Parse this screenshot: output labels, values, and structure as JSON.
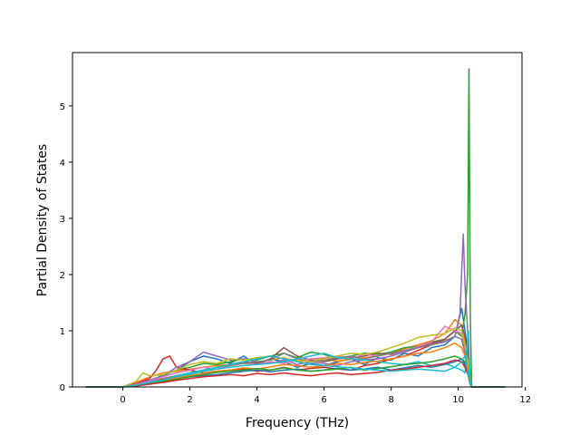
{
  "chart_data": {
    "type": "line",
    "title": "",
    "xlabel": "Frequency (THz)",
    "ylabel": "Partial Density of States",
    "xlim": [
      -1.5,
      11.9
    ],
    "ylim": [
      0,
      5.95
    ],
    "xticks": [
      0,
      2,
      4,
      6,
      8,
      10,
      12
    ],
    "xtick_labels": [
      "0",
      "2",
      "4",
      "6",
      "8",
      "10",
      "12"
    ],
    "yticks": [
      0,
      1,
      2,
      3,
      4,
      5
    ],
    "ytick_labels": [
      "0",
      "1",
      "2",
      "3",
      "4",
      "5"
    ],
    "grid": false,
    "legend": false,
    "palette": [
      "#1f77b4",
      "#ff7f0e",
      "#2ca02c",
      "#d62728",
      "#9467bd",
      "#8c564b",
      "#e377c2",
      "#7f7f7f",
      "#bcbd22",
      "#17becf"
    ],
    "series": [
      {
        "color": "#1f77b4",
        "x": [
          -1.1,
          0.0,
          0.4,
          0.8,
          1.2,
          1.6,
          2.0,
          2.4,
          2.8,
          3.2,
          3.6,
          4.0,
          4.4,
          4.8,
          5.2,
          5.6,
          6.0,
          6.4,
          6.8,
          7.2,
          7.6,
          8.0,
          8.4,
          8.8,
          9.2,
          9.6,
          9.9,
          10.1,
          10.2,
          10.3,
          10.35,
          10.4,
          11.4
        ],
        "y": [
          0,
          0,
          0.05,
          0.12,
          0.2,
          0.3,
          0.45,
          0.55,
          0.5,
          0.42,
          0.55,
          0.4,
          0.5,
          0.45,
          0.35,
          0.42,
          0.38,
          0.45,
          0.5,
          0.4,
          0.52,
          0.48,
          0.6,
          0.55,
          0.7,
          0.75,
          0.9,
          1.4,
          1.0,
          0.6,
          0.2,
          0,
          0
        ]
      },
      {
        "color": "#ff7f0e",
        "x": [
          -1.1,
          0.0,
          0.4,
          0.8,
          1.2,
          1.6,
          2.0,
          2.4,
          2.8,
          3.2,
          3.6,
          4.0,
          4.4,
          4.8,
          5.2,
          5.6,
          6.0,
          6.4,
          6.8,
          7.2,
          7.6,
          8.0,
          8.4,
          8.8,
          9.2,
          9.6,
          9.9,
          10.1,
          10.2,
          10.3,
          10.35,
          10.4,
          11.4
        ],
        "y": [
          0,
          0,
          0.08,
          0.18,
          0.25,
          0.28,
          0.32,
          0.35,
          0.38,
          0.4,
          0.42,
          0.44,
          0.48,
          0.52,
          0.45,
          0.47,
          0.5,
          0.46,
          0.49,
          0.52,
          0.55,
          0.6,
          0.68,
          0.75,
          0.82,
          0.95,
          1.2,
          1.1,
          0.8,
          0.5,
          0.15,
          0,
          0
        ]
      },
      {
        "color": "#2ca02c",
        "x": [
          -1.1,
          0.0,
          0.4,
          0.8,
          1.2,
          1.6,
          2.0,
          2.4,
          2.8,
          3.2,
          3.6,
          4.0,
          4.4,
          4.8,
          5.2,
          5.6,
          6.0,
          6.4,
          6.8,
          7.2,
          7.6,
          8.0,
          8.4,
          8.8,
          9.2,
          9.6,
          9.9,
          10.1,
          10.2,
          10.28,
          10.32,
          10.36,
          10.4,
          11.4
        ],
        "y": [
          0,
          0,
          0.04,
          0.1,
          0.22,
          0.3,
          0.35,
          0.42,
          0.4,
          0.45,
          0.5,
          0.48,
          0.55,
          0.6,
          0.52,
          0.62,
          0.58,
          0.5,
          0.55,
          0.6,
          0.58,
          0.62,
          0.7,
          0.72,
          0.8,
          0.85,
          1.0,
          0.9,
          1.3,
          2.0,
          5.66,
          1.2,
          0,
          0
        ]
      },
      {
        "color": "#d62728",
        "x": [
          -1.1,
          0.0,
          0.4,
          0.8,
          1.0,
          1.2,
          1.4,
          1.6,
          2.0,
          2.4,
          2.8,
          3.2,
          3.6,
          4.0,
          4.4,
          4.8,
          5.2,
          5.6,
          6.0,
          6.4,
          6.8,
          7.2,
          7.6,
          8.0,
          8.4,
          8.8,
          9.2,
          9.6,
          9.9,
          10.1,
          10.2,
          10.3,
          10.35,
          10.4,
          11.4
        ],
        "y": [
          0,
          0,
          0.06,
          0.15,
          0.3,
          0.5,
          0.55,
          0.35,
          0.3,
          0.25,
          0.28,
          0.3,
          0.32,
          0.28,
          0.3,
          0.35,
          0.3,
          0.33,
          0.35,
          0.32,
          0.3,
          0.38,
          0.42,
          0.5,
          0.55,
          0.65,
          0.75,
          0.85,
          1.0,
          0.95,
          0.7,
          0.3,
          0.1,
          0,
          0
        ]
      },
      {
        "color": "#9467bd",
        "x": [
          -1.1,
          0.0,
          0.4,
          0.8,
          1.2,
          1.6,
          2.0,
          2.4,
          2.8,
          3.2,
          3.6,
          4.0,
          4.4,
          4.8,
          5.2,
          5.6,
          6.0,
          6.4,
          6.8,
          7.2,
          7.6,
          8.0,
          8.4,
          8.8,
          9.2,
          9.6,
          9.9,
          10.05,
          10.15,
          10.2,
          10.28,
          10.33,
          10.4,
          11.4
        ],
        "y": [
          0,
          0,
          0.05,
          0.12,
          0.2,
          0.35,
          0.45,
          0.62,
          0.55,
          0.48,
          0.5,
          0.45,
          0.42,
          0.48,
          0.4,
          0.45,
          0.42,
          0.38,
          0.45,
          0.48,
          0.5,
          0.55,
          0.62,
          0.7,
          0.75,
          0.8,
          0.9,
          1.3,
          2.72,
          1.8,
          1.0,
          0.4,
          0,
          0
        ]
      },
      {
        "color": "#8c564b",
        "x": [
          -1.1,
          0.0,
          0.4,
          0.8,
          1.2,
          1.6,
          2.0,
          2.4,
          2.8,
          3.2,
          3.6,
          4.0,
          4.4,
          4.8,
          5.2,
          5.6,
          6.0,
          6.4,
          6.8,
          7.2,
          7.6,
          8.0,
          8.4,
          8.8,
          9.2,
          9.6,
          9.9,
          10.1,
          10.2,
          10.3,
          10.35,
          10.4,
          11.4
        ],
        "y": [
          0,
          0,
          0.03,
          0.08,
          0.15,
          0.2,
          0.25,
          0.3,
          0.35,
          0.4,
          0.45,
          0.42,
          0.5,
          0.7,
          0.55,
          0.48,
          0.45,
          0.5,
          0.52,
          0.55,
          0.6,
          0.58,
          0.65,
          0.7,
          0.78,
          0.85,
          1.0,
          1.1,
          0.9,
          0.5,
          0.2,
          0,
          0
        ]
      },
      {
        "color": "#e377c2",
        "x": [
          -1.1,
          0.0,
          0.4,
          0.8,
          1.2,
          1.6,
          2.0,
          2.4,
          2.8,
          3.2,
          3.6,
          4.0,
          4.4,
          4.8,
          5.2,
          5.6,
          6.0,
          6.4,
          6.8,
          7.2,
          7.6,
          8.0,
          8.4,
          8.8,
          9.2,
          9.6,
          9.9,
          10.1,
          10.2,
          10.3,
          10.35,
          10.4,
          11.4
        ],
        "y": [
          0,
          0,
          0.04,
          0.1,
          0.18,
          0.25,
          0.3,
          0.35,
          0.32,
          0.38,
          0.42,
          0.4,
          0.45,
          0.42,
          0.48,
          0.5,
          0.52,
          0.55,
          0.5,
          0.58,
          0.55,
          0.6,
          0.65,
          0.72,
          0.8,
          1.08,
          1.0,
          0.95,
          0.7,
          0.4,
          0.1,
          0,
          0
        ]
      },
      {
        "color": "#7f7f7f",
        "x": [
          -1.1,
          0.0,
          0.4,
          0.8,
          1.2,
          1.6,
          2.0,
          2.4,
          2.8,
          3.2,
          3.6,
          4.0,
          4.4,
          4.8,
          5.2,
          5.6,
          6.0,
          6.4,
          6.8,
          7.2,
          7.6,
          8.0,
          8.4,
          8.8,
          9.2,
          9.6,
          9.9,
          10.1,
          10.2,
          10.3,
          10.35,
          10.4,
          11.4
        ],
        "y": [
          0,
          0,
          0.03,
          0.08,
          0.14,
          0.2,
          0.25,
          0.3,
          0.35,
          0.38,
          0.42,
          0.45,
          0.48,
          0.6,
          0.5,
          0.45,
          0.48,
          0.52,
          0.55,
          0.5,
          0.55,
          0.6,
          0.65,
          0.7,
          0.75,
          0.82,
          0.9,
          0.85,
          0.6,
          0.35,
          0.1,
          0,
          0
        ]
      },
      {
        "color": "#bcbd22",
        "x": [
          -1.1,
          0.0,
          0.4,
          0.6,
          0.8,
          1.2,
          1.6,
          2.0,
          2.4,
          2.8,
          3.2,
          3.6,
          4.0,
          4.4,
          4.8,
          5.2,
          5.6,
          6.0,
          6.4,
          6.8,
          7.2,
          7.6,
          8.0,
          8.4,
          8.8,
          9.2,
          9.6,
          9.9,
          10.1,
          10.2,
          10.3,
          10.35,
          10.4,
          11.4
        ],
        "y": [
          0,
          0,
          0.1,
          0.25,
          0.2,
          0.22,
          0.3,
          0.4,
          0.45,
          0.42,
          0.5,
          0.48,
          0.52,
          0.55,
          0.5,
          0.48,
          0.45,
          0.5,
          0.55,
          0.6,
          0.58,
          0.62,
          0.7,
          0.78,
          0.88,
          0.92,
          0.95,
          1.05,
          1.0,
          0.75,
          0.4,
          0.1,
          0,
          0
        ]
      },
      {
        "color": "#17becf",
        "x": [
          -1.1,
          0.0,
          0.4,
          0.8,
          1.2,
          1.6,
          2.0,
          2.4,
          2.8,
          3.2,
          3.6,
          4.0,
          4.4,
          4.8,
          5.2,
          5.6,
          6.0,
          6.4,
          6.8,
          7.2,
          7.6,
          8.0,
          8.4,
          8.8,
          9.2,
          9.6,
          9.9,
          10.1,
          10.2,
          10.3,
          10.35,
          10.4,
          11.4
        ],
        "y": [
          0,
          0,
          0.02,
          0.06,
          0.12,
          0.18,
          0.22,
          0.28,
          0.32,
          0.35,
          0.38,
          0.4,
          0.42,
          0.45,
          0.5,
          0.55,
          0.6,
          0.52,
          0.5,
          0.48,
          0.45,
          0.42,
          0.4,
          0.45,
          0.38,
          0.42,
          0.35,
          0.3,
          0.25,
          1.0,
          0.2,
          0,
          0
        ]
      },
      {
        "color": "#1f77b4",
        "x": [
          -1.1,
          0.0,
          0.4,
          0.8,
          1.2,
          1.6,
          2.0,
          2.4,
          2.8,
          3.2,
          3.6,
          4.0,
          4.4,
          4.8,
          5.2,
          5.6,
          6.0,
          6.4,
          6.8,
          7.2,
          7.6,
          8.0,
          8.4,
          8.8,
          9.2,
          9.6,
          9.9,
          10.1,
          10.2,
          10.3,
          10.35,
          10.4,
          11.4
        ],
        "y": [
          0,
          0,
          0.02,
          0.05,
          0.1,
          0.14,
          0.18,
          0.2,
          0.22,
          0.25,
          0.28,
          0.3,
          0.27,
          0.3,
          0.32,
          0.28,
          0.3,
          0.33,
          0.3,
          0.32,
          0.35,
          0.3,
          0.34,
          0.38,
          0.35,
          0.4,
          0.45,
          0.5,
          0.4,
          0.2,
          0.05,
          0,
          0
        ]
      },
      {
        "color": "#ff7f0e",
        "x": [
          -1.1,
          0.0,
          0.4,
          0.8,
          1.2,
          1.6,
          2.0,
          2.4,
          2.8,
          3.2,
          3.6,
          4.0,
          4.4,
          4.8,
          5.2,
          5.6,
          6.0,
          6.4,
          6.8,
          7.2,
          7.6,
          8.0,
          8.4,
          8.8,
          9.2,
          9.6,
          9.9,
          10.1,
          10.2,
          10.3,
          10.35,
          10.4,
          11.4
        ],
        "y": [
          0,
          0,
          0.03,
          0.07,
          0.12,
          0.16,
          0.2,
          0.24,
          0.28,
          0.3,
          0.34,
          0.32,
          0.36,
          0.4,
          0.38,
          0.35,
          0.38,
          0.42,
          0.4,
          0.44,
          0.46,
          0.5,
          0.55,
          0.6,
          0.62,
          0.7,
          0.78,
          0.7,
          0.55,
          0.3,
          0.08,
          0,
          0
        ]
      },
      {
        "color": "#2ca02c",
        "x": [
          -1.1,
          0.0,
          0.4,
          0.8,
          1.2,
          1.6,
          2.0,
          2.4,
          2.8,
          3.2,
          3.6,
          4.0,
          4.4,
          4.8,
          5.2,
          5.6,
          6.0,
          6.4,
          6.8,
          7.2,
          7.6,
          8.0,
          8.4,
          8.8,
          9.2,
          9.6,
          9.9,
          10.1,
          10.2,
          10.3,
          10.35,
          10.4,
          11.4
        ],
        "y": [
          0,
          0,
          0.02,
          0.06,
          0.1,
          0.14,
          0.18,
          0.22,
          0.26,
          0.28,
          0.3,
          0.33,
          0.3,
          0.34,
          0.3,
          0.28,
          0.3,
          0.32,
          0.35,
          0.3,
          0.33,
          0.36,
          0.4,
          0.42,
          0.45,
          0.5,
          0.55,
          0.5,
          0.45,
          0.25,
          0.05,
          0,
          0
        ]
      },
      {
        "color": "#d62728",
        "x": [
          -1.1,
          0.0,
          0.4,
          0.8,
          1.2,
          1.6,
          2.0,
          2.4,
          2.8,
          3.2,
          3.6,
          4.0,
          4.4,
          4.8,
          5.2,
          5.6,
          6.0,
          6.4,
          6.8,
          7.2,
          7.6,
          8.0,
          8.4,
          8.8,
          9.2,
          9.6,
          9.9,
          10.1,
          10.2,
          10.3,
          10.35,
          10.4,
          11.4
        ],
        "y": [
          0,
          0,
          0.02,
          0.05,
          0.08,
          0.12,
          0.15,
          0.18,
          0.2,
          0.22,
          0.2,
          0.24,
          0.22,
          0.25,
          0.22,
          0.2,
          0.23,
          0.25,
          0.22,
          0.24,
          0.26,
          0.3,
          0.32,
          0.35,
          0.38,
          0.42,
          0.48,
          0.45,
          0.35,
          0.2,
          0.05,
          0,
          0
        ]
      },
      {
        "color": "#17becf",
        "x": [
          -1.1,
          0.0,
          0.4,
          0.8,
          1.2,
          1.6,
          2.0,
          2.4,
          2.8,
          3.2,
          3.6,
          4.0,
          4.4,
          4.8,
          5.2,
          5.6,
          6.0,
          6.4,
          6.8,
          7.2,
          7.6,
          8.0,
          8.4,
          8.8,
          9.2,
          9.6,
          9.9,
          10.1,
          10.2,
          10.3,
          10.35,
          10.4,
          11.4
        ],
        "y": [
          0,
          0,
          0.03,
          0.08,
          0.12,
          0.2,
          0.25,
          0.3,
          0.35,
          0.4,
          0.45,
          0.5,
          0.55,
          0.5,
          0.45,
          0.4,
          0.38,
          0.36,
          0.34,
          0.32,
          0.3,
          0.28,
          0.3,
          0.32,
          0.3,
          0.28,
          0.35,
          0.45,
          0.55,
          0.2,
          0.05,
          0,
          0
        ]
      }
    ]
  }
}
